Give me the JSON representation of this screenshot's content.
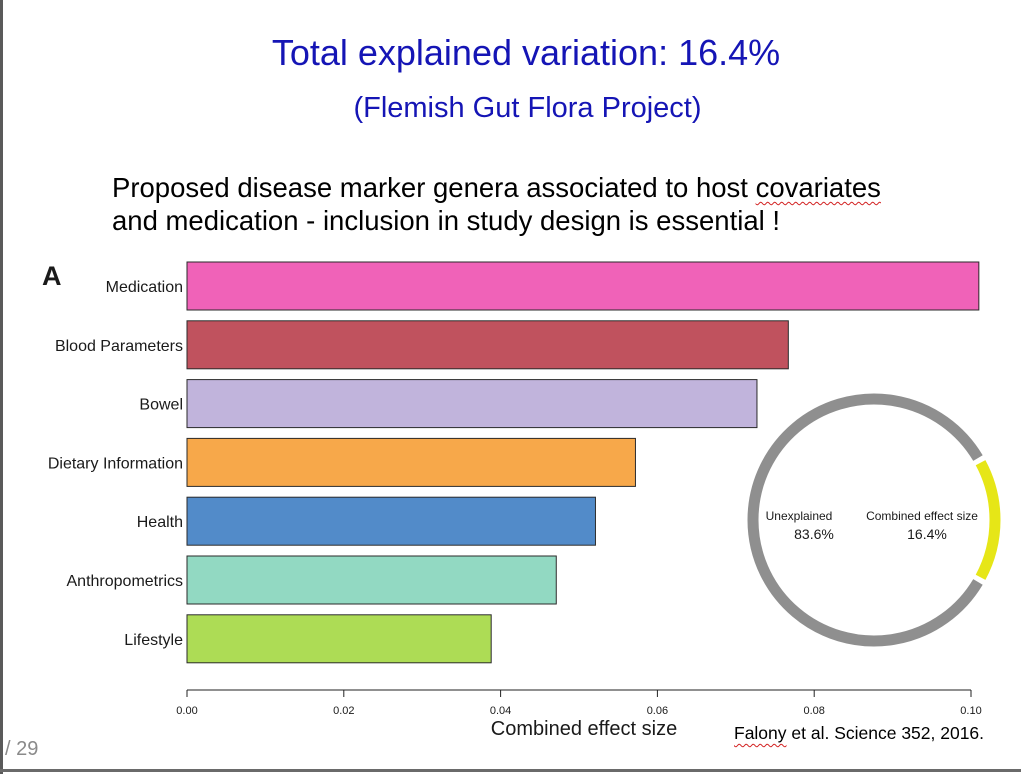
{
  "slide": {
    "title": "Total explained variation: 16.4%",
    "subtitle": "(Flemish Gut Flora Project)",
    "heading_line1_before": "Proposed disease marker genera associated to host ",
    "heading_line1_flagged": "covariates",
    "heading_line2": "and medication - inclusion in study design is essential !",
    "panel_letter": "A",
    "citation_flagged": "Falony",
    "citation_rest": " et al. Science 352, 2016.",
    "page_number": "/ 29"
  },
  "chart_data": [
    {
      "type": "bar",
      "orientation": "horizontal",
      "categories": [
        "Medication",
        "Blood Parameters",
        "Bowel",
        "Dietary Information",
        "Health",
        "Anthropometrics",
        "Lifestyle"
      ],
      "values": [
        0.101,
        0.0767,
        0.0727,
        0.0572,
        0.0521,
        0.0471,
        0.0388
      ],
      "colors": [
        "#f062b8",
        "#c0525e",
        "#c1b4dc",
        "#f7a84a",
        "#528bc9",
        "#92d9c2",
        "#addc55"
      ],
      "xlabel": "Combined effect size",
      "ylabel": "",
      "xlim": [
        0,
        0.1
      ],
      "xticks": [
        "0.00",
        "0.02",
        "0.04",
        "0.06",
        "0.08",
        "0.10"
      ],
      "grid": false
    },
    {
      "type": "pie",
      "style": "ring",
      "slices": [
        {
          "label": "Unexplained",
          "value_label": "83.6%",
          "value": 83.6,
          "color": "#8f8f8f"
        },
        {
          "label": "Combined effect size",
          "value_label": "16.4%",
          "value": 16.4,
          "color": "#e6e617"
        }
      ]
    }
  ]
}
